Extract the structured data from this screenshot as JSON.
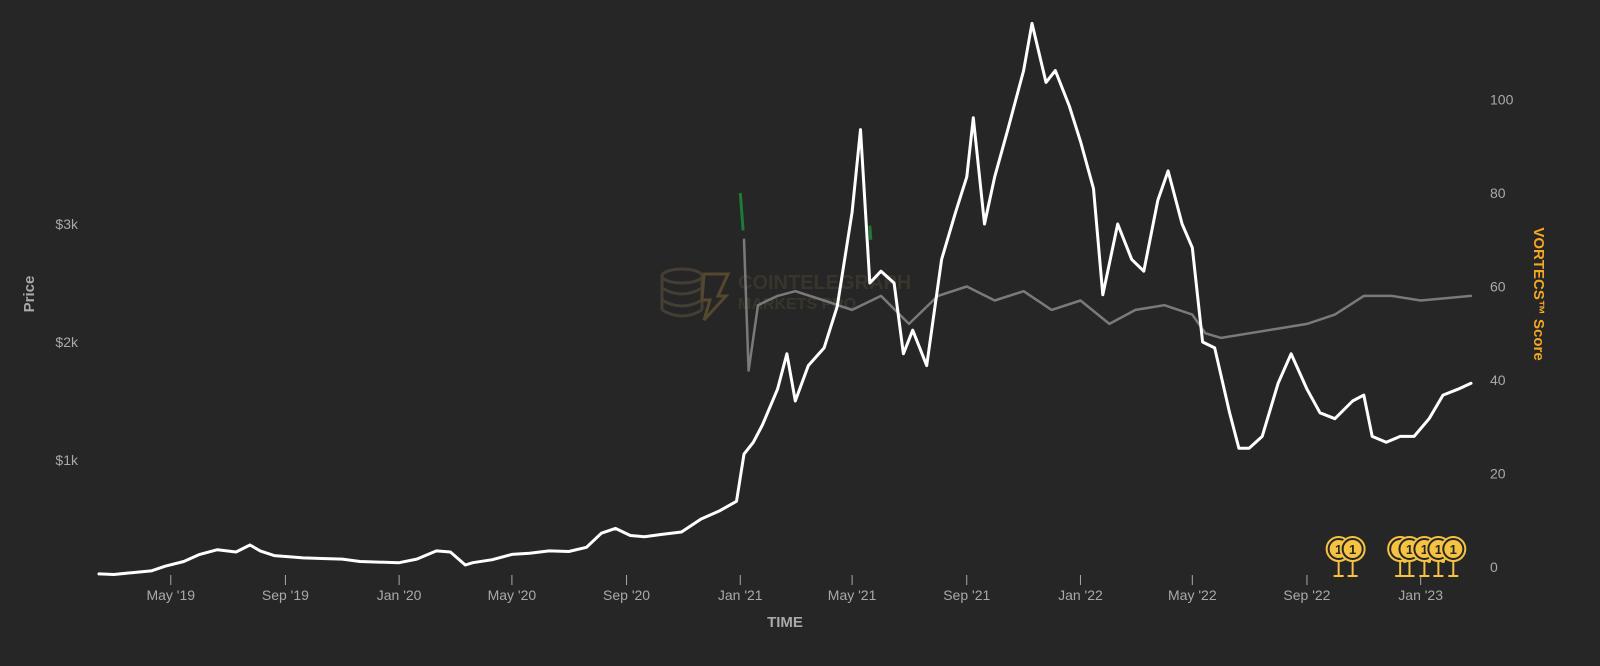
{
  "chart_data": {
    "type": "line",
    "xlabel": "TIME",
    "ylabel_left": "Price",
    "ylabel_right": "VORTECS™ Score",
    "x_ticks": [
      "May '19",
      "Sep '19",
      "Jan '20",
      "May '20",
      "Sep '20",
      "Jan '21",
      "May '21",
      "Sep '21",
      "Jan '22",
      "May '22",
      "Sep '22",
      "Jan '23"
    ],
    "y_left_ticks": [
      "$1k",
      "$2k",
      "$3k"
    ],
    "y_right_ticks": [
      "0",
      "20",
      "40",
      "60",
      "80",
      "100"
    ],
    "y_left_range": [
      0,
      4200
    ],
    "y_right_range": [
      0,
      117
    ],
    "x_range": [
      "2019-02-13",
      "2023-02-24"
    ],
    "series": [
      {
        "axis": "left",
        "color": "#ffffff",
        "points": [
          [
            "2019-02-13",
            35
          ],
          [
            "2019-03-01",
            30
          ],
          [
            "2019-03-20",
            45
          ],
          [
            "2019-04-10",
            60
          ],
          [
            "2019-04-25",
            100
          ],
          [
            "2019-05-15",
            140
          ],
          [
            "2019-06-01",
            200
          ],
          [
            "2019-06-20",
            240
          ],
          [
            "2019-07-10",
            220
          ],
          [
            "2019-07-25",
            280
          ],
          [
            "2019-08-05",
            230
          ],
          [
            "2019-08-20",
            190
          ],
          [
            "2019-09-05",
            180
          ],
          [
            "2019-09-20",
            170
          ],
          [
            "2019-10-10",
            165
          ],
          [
            "2019-11-01",
            160
          ],
          [
            "2019-11-20",
            140
          ],
          [
            "2019-12-10",
            135
          ],
          [
            "2020-01-01",
            130
          ],
          [
            "2020-01-20",
            160
          ],
          [
            "2020-02-10",
            230
          ],
          [
            "2020-02-25",
            220
          ],
          [
            "2020-03-12",
            110
          ],
          [
            "2020-03-20",
            130
          ],
          [
            "2020-04-10",
            155
          ],
          [
            "2020-05-01",
            200
          ],
          [
            "2020-05-20",
            210
          ],
          [
            "2020-06-10",
            230
          ],
          [
            "2020-07-01",
            225
          ],
          [
            "2020-07-20",
            260
          ],
          [
            "2020-08-05",
            380
          ],
          [
            "2020-08-20",
            420
          ],
          [
            "2020-09-05",
            360
          ],
          [
            "2020-09-20",
            350
          ],
          [
            "2020-10-10",
            370
          ],
          [
            "2020-10-30",
            390
          ],
          [
            "2020-11-20",
            500
          ],
          [
            "2020-12-10",
            570
          ],
          [
            "2020-12-28",
            650
          ],
          [
            "2021-01-05",
            1050
          ],
          [
            "2021-01-15",
            1150
          ],
          [
            "2021-01-25",
            1300
          ],
          [
            "2021-02-10",
            1600
          ],
          [
            "2021-02-20",
            1900
          ],
          [
            "2021-03-01",
            1500
          ],
          [
            "2021-03-15",
            1800
          ],
          [
            "2021-04-01",
            1950
          ],
          [
            "2021-04-15",
            2300
          ],
          [
            "2021-05-01",
            3100
          ],
          [
            "2021-05-10",
            3800
          ],
          [
            "2021-05-20",
            2500
          ],
          [
            "2021-06-01",
            2600
          ],
          [
            "2021-06-15",
            2500
          ],
          [
            "2021-06-25",
            1900
          ],
          [
            "2021-07-05",
            2100
          ],
          [
            "2021-07-20",
            1800
          ],
          [
            "2021-08-05",
            2700
          ],
          [
            "2021-08-20",
            3100
          ],
          [
            "2021-09-01",
            3400
          ],
          [
            "2021-09-08",
            3900
          ],
          [
            "2021-09-20",
            3000
          ],
          [
            "2021-10-01",
            3400
          ],
          [
            "2021-10-15",
            3800
          ],
          [
            "2021-11-01",
            4300
          ],
          [
            "2021-11-10",
            4700
          ],
          [
            "2021-11-25",
            4200
          ],
          [
            "2021-12-05",
            4300
          ],
          [
            "2021-12-20",
            4000
          ],
          [
            "2022-01-01",
            3700
          ],
          [
            "2022-01-15",
            3300
          ],
          [
            "2022-01-25",
            2400
          ],
          [
            "2022-02-10",
            3000
          ],
          [
            "2022-02-25",
            2700
          ],
          [
            "2022-03-10",
            2600
          ],
          [
            "2022-03-25",
            3200
          ],
          [
            "2022-04-05",
            3450
          ],
          [
            "2022-04-20",
            3000
          ],
          [
            "2022-05-01",
            2800
          ],
          [
            "2022-05-12",
            2000
          ],
          [
            "2022-05-25",
            1950
          ],
          [
            "2022-06-10",
            1400
          ],
          [
            "2022-06-20",
            1100
          ],
          [
            "2022-07-01",
            1100
          ],
          [
            "2022-07-15",
            1200
          ],
          [
            "2022-08-01",
            1650
          ],
          [
            "2022-08-15",
            1900
          ],
          [
            "2022-09-01",
            1600
          ],
          [
            "2022-09-15",
            1400
          ],
          [
            "2022-10-01",
            1350
          ],
          [
            "2022-10-20",
            1500
          ],
          [
            "2022-11-01",
            1550
          ],
          [
            "2022-11-10",
            1200
          ],
          [
            "2022-11-25",
            1150
          ],
          [
            "2022-12-10",
            1200
          ],
          [
            "2022-12-25",
            1200
          ],
          [
            "2023-01-10",
            1350
          ],
          [
            "2023-01-25",
            1550
          ],
          [
            "2023-02-10",
            1600
          ],
          [
            "2023-02-24",
            1650
          ]
        ]
      },
      {
        "axis": "right",
        "color": "#7a7a7a",
        "points": [
          [
            "2021-01-05",
            70
          ],
          [
            "2021-01-10",
            42
          ],
          [
            "2021-01-20",
            56
          ],
          [
            "2021-02-10",
            58
          ],
          [
            "2021-03-01",
            59
          ],
          [
            "2021-04-01",
            57
          ],
          [
            "2021-05-01",
            55
          ],
          [
            "2021-06-01",
            58
          ],
          [
            "2021-07-01",
            52
          ],
          [
            "2021-08-01",
            58
          ],
          [
            "2021-09-01",
            60
          ],
          [
            "2021-10-01",
            57
          ],
          [
            "2021-11-01",
            59
          ],
          [
            "2021-12-01",
            55
          ],
          [
            "2022-01-01",
            57
          ],
          [
            "2022-02-01",
            52
          ],
          [
            "2022-03-01",
            55
          ],
          [
            "2022-04-01",
            56
          ],
          [
            "2022-05-01",
            54
          ],
          [
            "2022-05-15",
            50
          ],
          [
            "2022-06-01",
            49
          ],
          [
            "2022-07-01",
            50
          ],
          [
            "2022-08-01",
            51
          ],
          [
            "2022-09-01",
            52
          ],
          [
            "2022-10-01",
            54
          ],
          [
            "2022-11-01",
            58
          ],
          [
            "2022-12-01",
            58
          ],
          [
            "2023-01-01",
            57
          ],
          [
            "2023-02-24",
            58
          ]
        ]
      }
    ],
    "highlight_segments": [
      {
        "color": "#1f7a33",
        "points": [
          [
            "2021-01-01",
            80
          ],
          [
            "2021-01-04",
            72
          ]
        ]
      },
      {
        "color": "#1f7a33",
        "points": [
          [
            "2021-05-20",
            73
          ],
          [
            "2021-05-21",
            70
          ]
        ]
      }
    ],
    "badges": {
      "label": "1",
      "color": "#f5c242",
      "dates": [
        "2022-10-05",
        "2022-10-20",
        "2022-12-10",
        "2022-12-20",
        "2023-01-05",
        "2023-01-20",
        "2023-02-05"
      ],
      "dot_dates": [
        "2022-12-15",
        "2023-01-10",
        "2023-01-25"
      ]
    },
    "watermark": {
      "line1": "COINTELEGRAPH",
      "line2": "MARKETS PRO"
    },
    "colors": {
      "background": "#262626",
      "price": "#ffffff",
      "score": "#7a7a7a",
      "right_axis_title": "#f5a623",
      "left_axis_title": "#a9a9a9"
    }
  }
}
